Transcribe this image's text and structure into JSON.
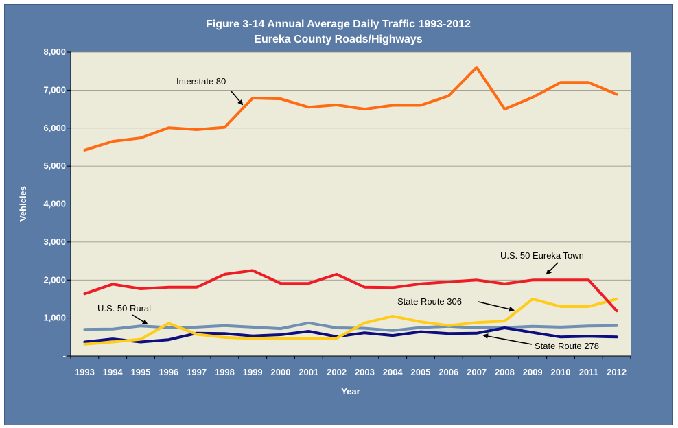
{
  "chart_data": {
    "type": "line",
    "title": "Figure 3-14 Annual Average Daily Traffic 1993-2012",
    "subtitle": "Eureka County Roads/Highways",
    "xlabel": "Year",
    "ylabel": "Vehicles",
    "ylim": [
      0,
      8000
    ],
    "grid": "horizontal",
    "yticks": [
      {
        "value": 0,
        "label": "-"
      },
      {
        "value": 1000,
        "label": "1,000"
      },
      {
        "value": 2000,
        "label": "2,000"
      },
      {
        "value": 3000,
        "label": "3,000"
      },
      {
        "value": 4000,
        "label": "4,000"
      },
      {
        "value": 5000,
        "label": "5,000"
      },
      {
        "value": 6000,
        "label": "6,000"
      },
      {
        "value": 7000,
        "label": "7,000"
      },
      {
        "value": 8000,
        "label": "8,000"
      }
    ],
    "categories": [
      "1993",
      "1994",
      "1995",
      "1996",
      "1997",
      "1998",
      "1999",
      "2000",
      "2001",
      "2002",
      "2003",
      "2004",
      "2005",
      "2006",
      "2007",
      "2008",
      "2009",
      "2010",
      "2011",
      "2012"
    ],
    "series": [
      {
        "name": "Interstate 80",
        "color": "#ff6a13",
        "values": [
          5420,
          5650,
          5740,
          6010,
          5960,
          6020,
          6790,
          6770,
          6550,
          6610,
          6500,
          6600,
          6600,
          6850,
          7600,
          6500,
          6810,
          7200,
          7200,
          6890
        ]
      },
      {
        "name": "U.S. 50 Eureka Town",
        "color": "#ee1c25",
        "values": [
          1640,
          1890,
          1770,
          1810,
          1810,
          2150,
          2250,
          1910,
          1910,
          2150,
          1810,
          1800,
          1900,
          1950,
          2000,
          1900,
          2000,
          2000,
          2000,
          1190
        ]
      },
      {
        "name": "U.S. 50 Rural",
        "color": "#6f8fb5",
        "values": [
          700,
          710,
          790,
          750,
          760,
          800,
          760,
          720,
          870,
          740,
          730,
          670,
          750,
          780,
          740,
          750,
          780,
          760,
          790,
          800
        ]
      },
      {
        "name": "State Route 306",
        "color": "#ffcc1a",
        "values": [
          310,
          370,
          440,
          860,
          570,
          490,
          460,
          460,
          460,
          470,
          870,
          1050,
          900,
          800,
          880,
          920,
          1500,
          1300,
          1300,
          1500
        ]
      },
      {
        "name": "State Route 278",
        "color": "#0d0d80",
        "values": [
          370,
          450,
          370,
          430,
          600,
          590,
          530,
          560,
          650,
          510,
          610,
          540,
          640,
          590,
          600,
          740,
          620,
          500,
          520,
          500
        ]
      }
    ]
  }
}
